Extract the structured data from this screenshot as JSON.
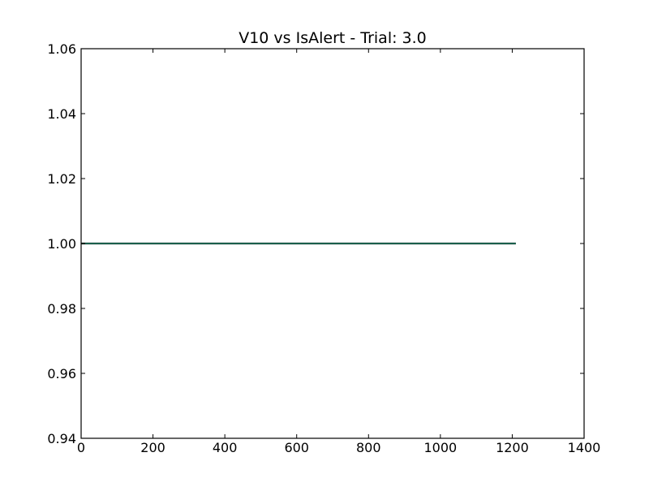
{
  "chart_data": {
    "type": "line",
    "title": "V10 vs IsAlert - Trial: 3.0",
    "xlabel": "",
    "ylabel": "",
    "xlim": [
      0,
      1400
    ],
    "ylim": [
      0.94,
      1.06
    ],
    "xticks": [
      0,
      200,
      400,
      600,
      800,
      1000,
      1200,
      1400
    ],
    "xtick_labels": [
      "0",
      "200",
      "400",
      "600",
      "800",
      "1000",
      "1200",
      "1400"
    ],
    "yticks": [
      0.94,
      0.96,
      0.98,
      1.0,
      1.02,
      1.04,
      1.06
    ],
    "ytick_labels": [
      "0.94",
      "0.96",
      "0.98",
      "1.00",
      "1.02",
      "1.04",
      "1.06"
    ],
    "grid": false,
    "legend": "none",
    "series": [
      {
        "color": "#000000",
        "x": [
          0,
          1210
        ],
        "y": [
          1.0,
          1.0
        ]
      },
      {
        "color": "#1b8a6b",
        "x": [
          0,
          1210
        ],
        "y": [
          1.0,
          1.0
        ]
      }
    ]
  }
}
